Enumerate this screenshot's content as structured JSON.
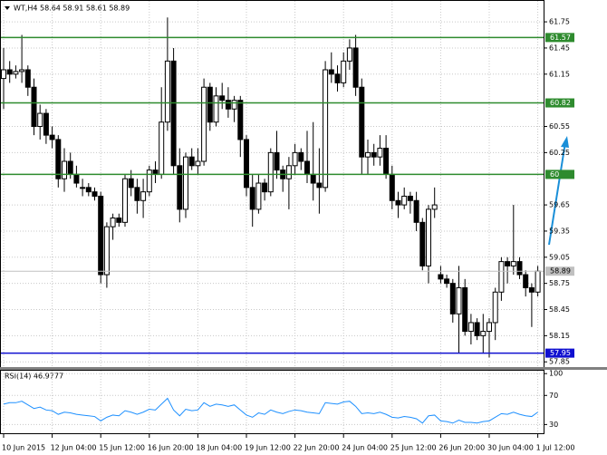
{
  "chart_data": {
    "type": "candlestick",
    "title": "WT,H4 58.64 58.91 58.61 58.89",
    "categories": [
      "10 Jun 2015",
      null,
      null,
      null,
      null,
      null,
      null,
      null,
      "12 Jun 04:00",
      null,
      null,
      null,
      null,
      null,
      null,
      null,
      "15 Jun 12:00",
      null,
      null,
      null,
      null,
      null,
      null,
      null,
      "16 Jun 20:00",
      null,
      null,
      null,
      null,
      null,
      null,
      null,
      "18 Jun 04:00",
      null,
      null,
      null,
      null,
      null,
      null,
      null,
      "19 Jun 12:00",
      null,
      null,
      null,
      null,
      null,
      null,
      null,
      "22 Jun 20:00",
      null,
      null,
      null,
      null,
      null,
      null,
      null,
      "24 Jun 04:00",
      null,
      null,
      null,
      null,
      null,
      null,
      null,
      "25 Jun 12:00",
      null,
      null,
      null,
      null,
      null,
      null,
      null,
      "26 Jun 20:00",
      null,
      null,
      null,
      null,
      null,
      null,
      null,
      "30 Jun 04:00",
      null,
      null,
      null,
      null,
      null,
      null,
      null,
      "1 Jul 12:00"
    ],
    "open": [
      61.1,
      61.2,
      61.15,
      61.18,
      61.2,
      61.0,
      60.55,
      60.7,
      60.45,
      60.4,
      59.95,
      60.15,
      60.0,
      59.85,
      59.85,
      59.8,
      59.75,
      58.85,
      59.4,
      59.5,
      59.45,
      59.95,
      59.85,
      59.7,
      59.8,
      60.05,
      60.0,
      60.6,
      61.3,
      60.1,
      59.6,
      60.2,
      60.1,
      60.15,
      61.0,
      60.6,
      60.9,
      60.85,
      60.75,
      60.85,
      60.4,
      59.85,
      59.6,
      59.9,
      59.8,
      60.25,
      60.05,
      59.95,
      60.1,
      60.25,
      60.15,
      60.0,
      59.9,
      59.85,
      61.2,
      61.15,
      61.05,
      61.3,
      61.45,
      61.0,
      60.2,
      60.25,
      60.2,
      60.3,
      60.0,
      59.7,
      59.65,
      59.75,
      59.7,
      59.45,
      58.95,
      59.6,
      58.85,
      58.8,
      58.75,
      58.4,
      58.7,
      58.2,
      58.3,
      58.15,
      58.2,
      58.3,
      58.65,
      59.0,
      58.95,
      59.0,
      58.85,
      58.7,
      58.65
    ],
    "high": [
      61.45,
      61.3,
      61.25,
      61.6,
      61.25,
      61.1,
      60.8,
      60.75,
      60.55,
      60.45,
      60.3,
      60.25,
      60.1,
      59.95,
      59.9,
      59.85,
      59.8,
      59.45,
      59.55,
      59.55,
      60.0,
      60.05,
      59.95,
      59.95,
      60.1,
      60.15,
      61.0,
      61.8,
      61.45,
      60.3,
      60.25,
      60.3,
      60.3,
      61.1,
      61.05,
      61.0,
      61.05,
      61.0,
      60.9,
      60.9,
      60.45,
      60.0,
      60.0,
      59.95,
      60.3,
      60.5,
      60.1,
      60.2,
      60.35,
      60.3,
      60.5,
      60.6,
      60.3,
      61.3,
      61.4,
      61.25,
      61.4,
      61.55,
      61.6,
      61.1,
      60.4,
      60.35,
      60.45,
      60.45,
      60.1,
      59.8,
      59.85,
      59.8,
      59.8,
      59.5,
      59.65,
      59.85,
      58.95,
      58.85,
      58.8,
      58.95,
      58.8,
      58.4,
      58.35,
      58.4,
      58.35,
      58.7,
      59.05,
      59.05,
      59.65,
      59.05,
      58.9,
      58.75,
      58.95
    ],
    "low": [
      60.75,
      61.05,
      61.1,
      61.05,
      60.9,
      60.45,
      60.4,
      60.35,
      60.3,
      59.85,
      59.8,
      59.95,
      59.85,
      59.75,
      59.75,
      59.7,
      58.75,
      58.7,
      59.25,
      59.4,
      59.4,
      59.75,
      59.55,
      59.5,
      59.75,
      59.9,
      59.95,
      60.5,
      60.0,
      59.45,
      59.5,
      60.05,
      60.0,
      60.1,
      60.5,
      60.55,
      60.75,
      60.65,
      60.6,
      60.2,
      59.75,
      59.4,
      59.55,
      59.7,
      59.75,
      59.95,
      59.8,
      59.6,
      60.0,
      60.05,
      59.9,
      59.7,
      59.55,
      59.8,
      61.05,
      60.95,
      61.0,
      61.2,
      60.9,
      60.0,
      60.0,
      60.1,
      60.1,
      59.95,
      59.6,
      59.5,
      59.6,
      59.55,
      59.35,
      58.9,
      58.75,
      59.5,
      58.75,
      58.7,
      58.3,
      57.95,
      58.15,
      58.05,
      58.1,
      57.95,
      57.9,
      58.1,
      58.55,
      58.75,
      58.85,
      58.8,
      58.6,
      58.25,
      58.6
    ],
    "close": [
      61.2,
      61.15,
      61.18,
      61.2,
      61.0,
      60.55,
      60.7,
      60.45,
      60.4,
      59.95,
      60.15,
      60.0,
      59.9,
      59.85,
      59.8,
      59.75,
      58.85,
      59.4,
      59.5,
      59.45,
      59.95,
      59.85,
      59.7,
      59.8,
      60.05,
      60.0,
      60.6,
      61.3,
      60.1,
      59.6,
      60.2,
      60.1,
      60.15,
      61.0,
      60.6,
      60.9,
      60.85,
      60.75,
      60.85,
      60.4,
      59.85,
      59.6,
      59.9,
      59.8,
      60.25,
      60.05,
      59.95,
      60.1,
      60.25,
      60.15,
      60.0,
      59.9,
      59.85,
      61.2,
      61.15,
      61.05,
      61.3,
      61.45,
      61.0,
      60.2,
      60.25,
      60.2,
      60.3,
      60.0,
      59.7,
      59.65,
      59.75,
      59.7,
      59.45,
      58.95,
      59.6,
      59.65,
      58.8,
      58.75,
      58.4,
      58.7,
      58.2,
      58.3,
      58.15,
      58.2,
      58.3,
      58.65,
      59.0,
      58.95,
      59.0,
      58.85,
      58.7,
      58.65,
      58.89
    ],
    "up_color": "#ffffff",
    "down_color": "#000000",
    "ylim": [
      57.79,
      61.99
    ],
    "yticks": [
      61.75,
      61.45,
      61.15,
      60.55,
      60.25,
      59.65,
      59.35,
      59.05,
      58.75,
      58.45,
      58.15,
      57.85
    ],
    "grid": true,
    "hlines": [
      {
        "value": 61.57,
        "color": "#2e8b2e"
      },
      {
        "value": 60.82,
        "color": "#2e8b2e"
      },
      {
        "value": 60.0,
        "color": "#2e8b2e"
      },
      {
        "value": 57.95,
        "color": "#1010d0"
      }
    ],
    "last": 58.89,
    "rsi": {
      "label": "RSI(14) 46.9777",
      "color": "#1e90ff",
      "ylim": [
        18,
        104
      ],
      "yticks": [
        100,
        70,
        30
      ],
      "values": [
        58,
        60,
        60,
        62,
        57,
        52,
        54,
        50,
        49,
        44,
        47,
        46,
        44,
        43,
        42,
        41,
        35,
        40,
        43,
        42,
        49,
        47,
        44,
        47,
        51,
        50,
        58,
        66,
        50,
        42,
        51,
        49,
        50,
        60,
        55,
        58,
        57,
        55,
        57,
        50,
        43,
        40,
        46,
        44,
        50,
        47,
        45,
        48,
        50,
        49,
        47,
        46,
        45,
        60,
        59,
        58,
        61,
        62,
        55,
        45,
        46,
        45,
        47,
        44,
        40,
        39,
        41,
        40,
        38,
        32,
        42,
        43,
        35,
        34,
        32,
        36,
        33,
        33,
        32,
        34,
        35,
        40,
        45,
        44,
        47,
        44,
        42,
        41,
        47
      ]
    }
  }
}
